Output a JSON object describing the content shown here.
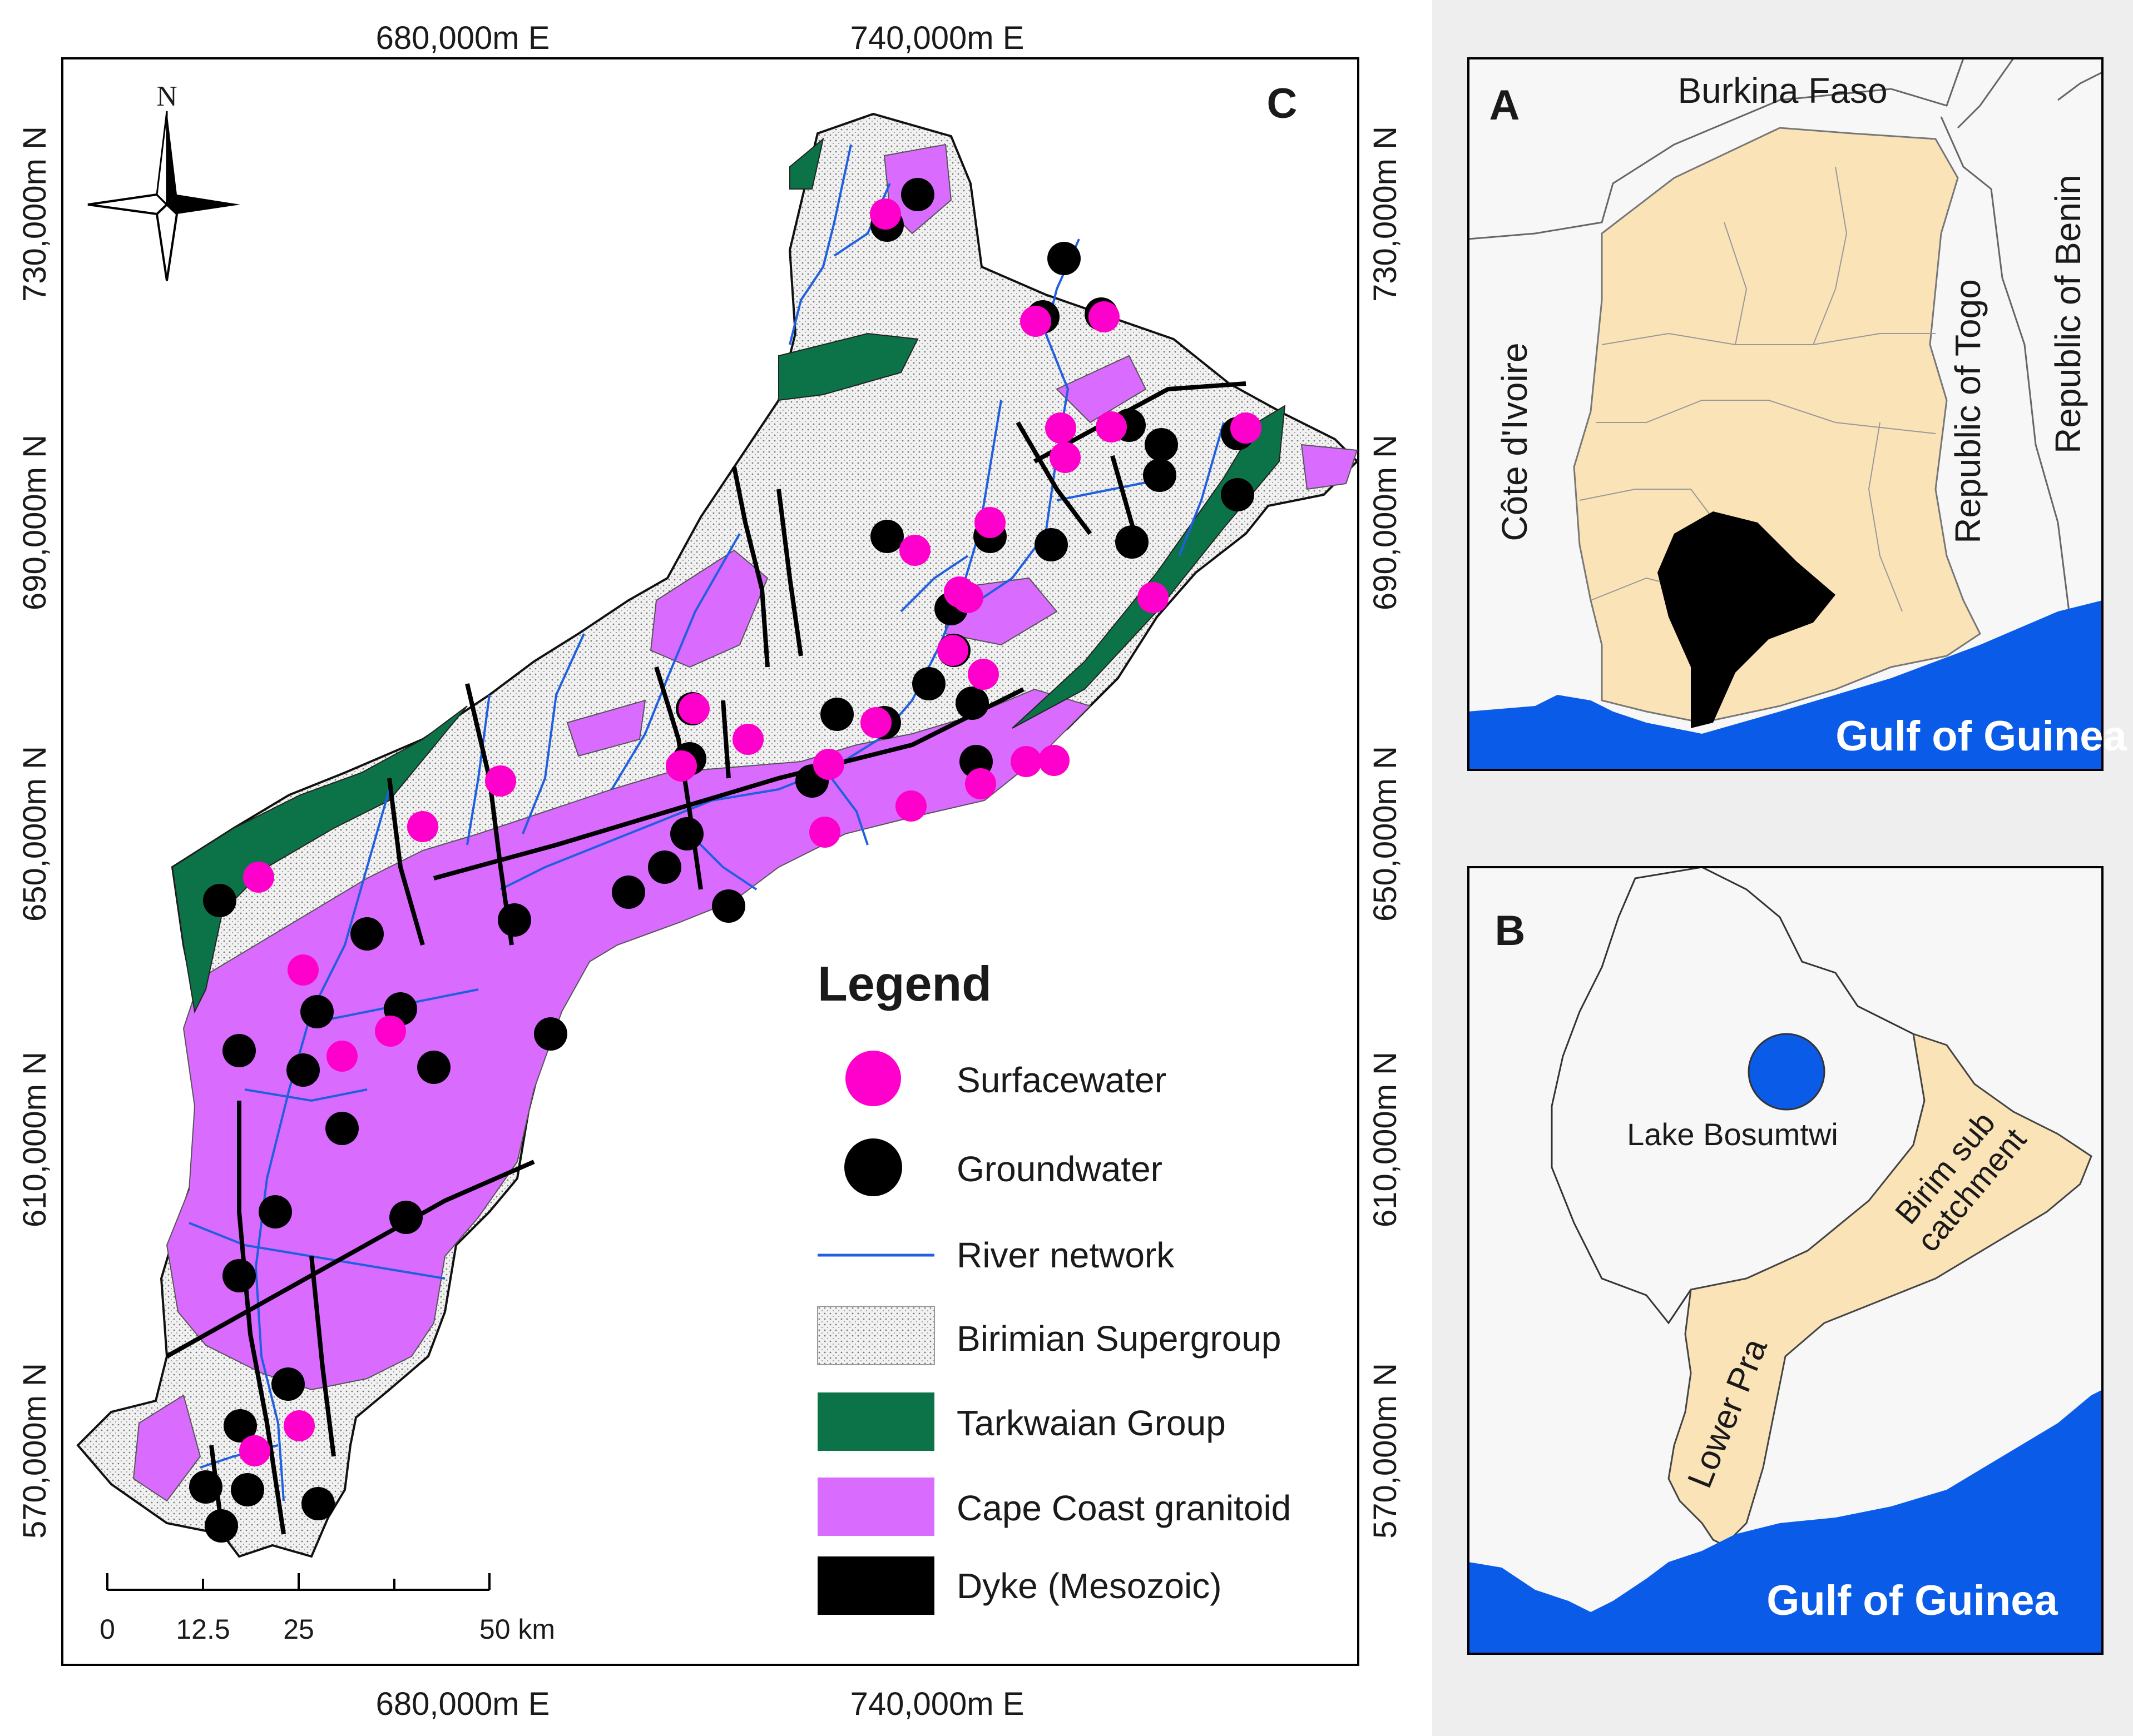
{
  "panel_c": {
    "letter": "C",
    "x_ticks": [
      "680,000m E",
      "740,000m E"
    ],
    "y_ticks": [
      "730,000m N",
      "690,000m N",
      "650,000m N",
      "610,000m N",
      "570,000m N"
    ],
    "north_label": "N",
    "scale": {
      "labels": [
        "0",
        "12.5",
        "25",
        "50 km"
      ]
    },
    "legend": {
      "title": "Legend",
      "items": [
        {
          "label": "Surfacewater",
          "color": "#ff00cc",
          "icon": "pink-circle"
        },
        {
          "label": "Groundwater",
          "color": "#000000",
          "icon": "black-circle"
        },
        {
          "label": "River network",
          "color": "#1f5fe0",
          "icon": "blue-line"
        },
        {
          "label": "Birimian Supergroup",
          "color": "#e8e8e8",
          "icon": "dotted-box"
        },
        {
          "label": "Tarkwaian Group",
          "color": "#0b7347",
          "icon": "green-box"
        },
        {
          "label": "Cape Coast granitoid",
          "color": "#d96bff",
          "icon": "violet-box"
        },
        {
          "label": "Dyke (Mesozoic)",
          "color": "#000000",
          "icon": "black-box"
        }
      ]
    }
  },
  "panel_a": {
    "letter": "A",
    "labels": {
      "burkina": "Burkina Faso",
      "cote": "Côte d'Ivoire",
      "togo": "Republic of Togo",
      "benin": "Republic of Benin",
      "gulf": "Gulf of Guinea"
    },
    "colors": {
      "ghana": "#fbe3b8",
      "catchment": "#000000",
      "sea": "#0a5ce8"
    }
  },
  "panel_b": {
    "letter": "B",
    "labels": {
      "lake": "Lake Bosumtwi",
      "birim_line1": "Birim sub",
      "birim_line2": "catchment",
      "lower_pra": "Lower Pra",
      "gulf": "Gulf of Guinea"
    },
    "colors": {
      "birim": "#fbe3b8",
      "lake": "#0a5ce8",
      "sea": "#0a5ce8"
    }
  }
}
